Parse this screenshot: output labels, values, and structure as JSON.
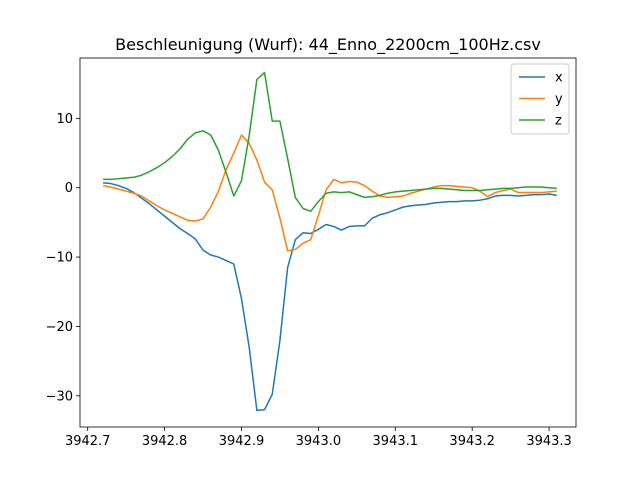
{
  "chart_data": {
    "type": "line",
    "title": "Beschleunigung (Wurf): 44_Enno_2200cm_100Hz.csv",
    "xlabel": "",
    "ylabel": "",
    "xlim": [
      3942.69,
      3943.335
    ],
    "ylim": [
      -34.5,
      18.7
    ],
    "x_ticks": [
      3942.7,
      3942.8,
      3942.9,
      3943.0,
      3943.1,
      3943.2,
      3943.3
    ],
    "x_tick_labels": [
      "3942.7",
      "3942.8",
      "3942.9",
      "3943.0",
      "3943.1",
      "3943.2",
      "3943.3"
    ],
    "y_ticks": [
      -30,
      -20,
      -10,
      0,
      10
    ],
    "y_tick_labels": [
      "−30",
      "−20",
      "−10",
      "0",
      "10"
    ],
    "grid": false,
    "legend_position": "top-right",
    "x": [
      3942.72,
      3942.73,
      3942.74,
      3942.75,
      3942.76,
      3942.77,
      3942.78,
      3942.79,
      3942.8,
      3942.81,
      3942.82,
      3942.83,
      3942.84,
      3942.85,
      3942.86,
      3942.87,
      3942.88,
      3942.89,
      3942.9,
      3942.91,
      3942.92,
      3942.93,
      3942.94,
      3942.95,
      3942.96,
      3942.97,
      3942.98,
      3942.99,
      3943.0,
      3943.01,
      3943.02,
      3943.03,
      3943.04,
      3943.05,
      3943.06,
      3943.07,
      3943.08,
      3943.09,
      3943.1,
      3943.11,
      3943.12,
      3943.13,
      3943.14,
      3943.15,
      3943.16,
      3943.17,
      3943.18,
      3943.19,
      3943.2,
      3943.21,
      3943.22,
      3943.23,
      3943.24,
      3943.25,
      3943.26,
      3943.27,
      3943.28,
      3943.29,
      3943.3,
      3943.31
    ],
    "series": [
      {
        "name": "x",
        "color": "#1f77b4",
        "values": [
          0.7,
          0.6,
          0.3,
          -0.1,
          -0.7,
          -1.5,
          -2.3,
          -3.2,
          -4.1,
          -5.0,
          -5.9,
          -6.6,
          -7.4,
          -9.0,
          -9.7,
          -10.0,
          -10.5,
          -11.0,
          -16.0,
          -23.0,
          -32.1,
          -32.0,
          -29.8,
          -22.0,
          -11.5,
          -7.5,
          -6.5,
          -6.6,
          -6.0,
          -5.3,
          -5.6,
          -6.1,
          -5.6,
          -5.5,
          -5.5,
          -4.4,
          -3.9,
          -3.6,
          -3.2,
          -2.8,
          -2.6,
          -2.5,
          -2.4,
          -2.2,
          -2.1,
          -2.0,
          -2.0,
          -1.9,
          -1.9,
          -1.8,
          -1.6,
          -1.2,
          -1.1,
          -1.1,
          -1.2,
          -1.1,
          -1.0,
          -1.0,
          -0.9,
          -1.1
        ]
      },
      {
        "name": "y",
        "color": "#ff7f0e",
        "values": [
          0.3,
          0.1,
          -0.2,
          -0.5,
          -0.8,
          -1.2,
          -1.9,
          -2.6,
          -3.2,
          -3.7,
          -4.2,
          -4.7,
          -4.8,
          -4.5,
          -2.8,
          -0.5,
          2.6,
          5.0,
          7.6,
          6.4,
          4.0,
          0.8,
          -0.3,
          -4.4,
          -9.1,
          -8.9,
          -8.0,
          -7.5,
          -4.0,
          -0.3,
          1.2,
          0.7,
          0.9,
          0.8,
          0.3,
          -0.5,
          -1.2,
          -1.4,
          -1.3,
          -1.2,
          -0.8,
          -0.5,
          -0.2,
          0.1,
          0.3,
          0.3,
          0.2,
          0.1,
          0.0,
          -0.5,
          -1.3,
          -0.7,
          -0.4,
          -0.2,
          -0.7,
          -0.7,
          -0.7,
          -0.7,
          -0.6,
          -0.5
        ]
      },
      {
        "name": "z",
        "color": "#2ca02c",
        "values": [
          1.2,
          1.2,
          1.3,
          1.4,
          1.5,
          1.8,
          2.3,
          2.9,
          3.6,
          4.5,
          5.6,
          7.0,
          7.9,
          8.2,
          7.6,
          5.4,
          2.2,
          -1.2,
          1.0,
          7.5,
          15.6,
          16.6,
          9.6,
          9.6,
          4.2,
          -1.4,
          -3.0,
          -3.4,
          -2.0,
          -0.8,
          -0.6,
          -0.7,
          -0.6,
          -1.0,
          -1.4,
          -1.3,
          -1.1,
          -0.8,
          -0.6,
          -0.5,
          -0.4,
          -0.3,
          -0.2,
          -0.1,
          -0.1,
          -0.2,
          -0.3,
          -0.4,
          -0.4,
          -0.4,
          -0.3,
          -0.2,
          -0.1,
          -0.1,
          0.0,
          0.1,
          0.1,
          0.1,
          0.0,
          -0.1
        ]
      }
    ]
  }
}
